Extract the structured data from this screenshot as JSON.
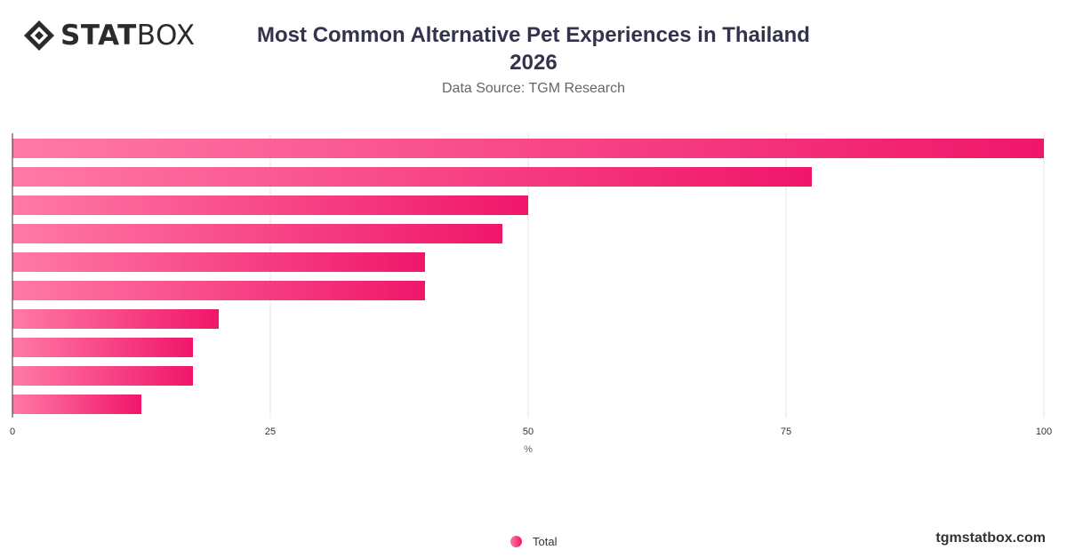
{
  "brand": {
    "bold": "STAT",
    "light": "BOX",
    "site": "tgmstatbox.com"
  },
  "header": {
    "title_line1": "Most Common Alternative Pet Experiences in Thailand",
    "title_line2": "2026",
    "subtitle": "Data Source: TGM Research"
  },
  "colors": {
    "bar_start": "#ff7aa6",
    "bar_end": "#f0166a",
    "grid": "#e6e6e6",
    "axis": "#333333"
  },
  "chart_data": {
    "type": "bar",
    "orientation": "horizontal",
    "title": "Most Common Alternative Pet Experiences in Thailand 2026",
    "subtitle": "Data Source: TGM Research",
    "xlabel": "%",
    "ylabel": "",
    "xlim": [
      0,
      100
    ],
    "xticks": [
      "0",
      "25",
      "50",
      "75",
      "100"
    ],
    "grid": true,
    "legend_position": "bottom",
    "series": [
      {
        "name": "Total",
        "values": [
          100,
          77.5,
          50,
          47.5,
          40,
          40,
          20,
          17.5,
          17.5,
          12.5
        ]
      }
    ]
  }
}
